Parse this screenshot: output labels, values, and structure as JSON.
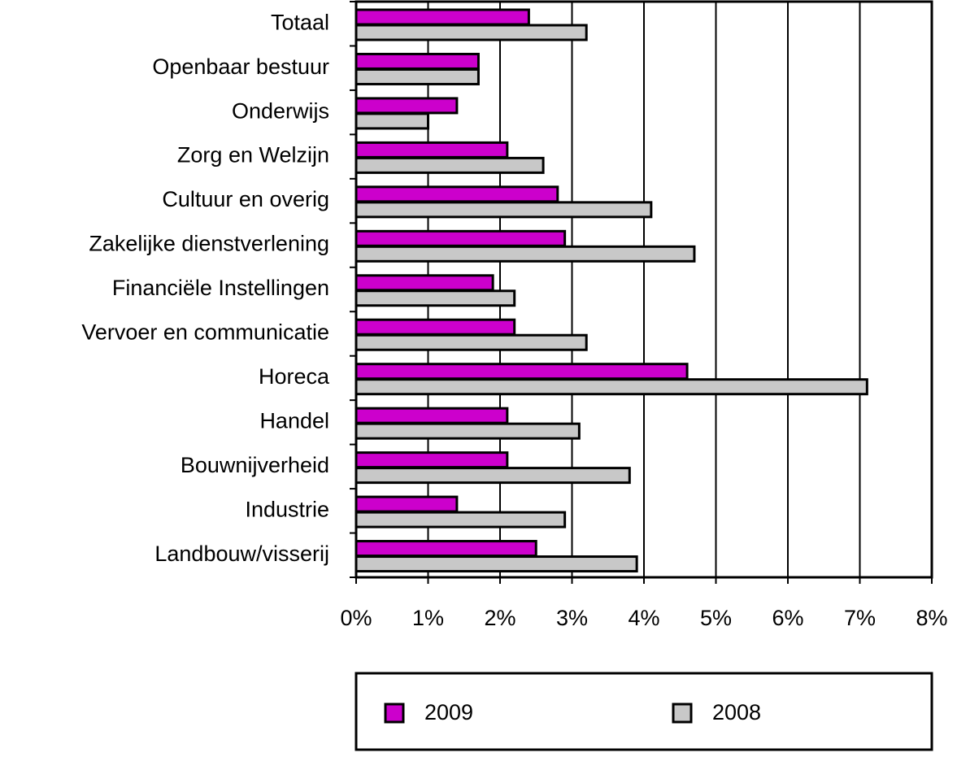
{
  "chart_data": {
    "type": "bar",
    "orientation": "horizontal",
    "categories": [
      "Totaal",
      "Openbaar bestuur",
      "Onderwijs",
      "Zorg en Welzijn",
      "Cultuur en overig",
      "Zakelijke dienstverlening",
      "Financiële Instellingen",
      "Vervoer en communicatie",
      "Horeca",
      "Handel",
      "Bouwnijverheid",
      "Industrie",
      "Landbouw/visserij"
    ],
    "series": [
      {
        "name": "2009",
        "color": "#cc00cc",
        "values": [
          2.4,
          1.7,
          1.4,
          2.1,
          2.8,
          2.9,
          1.9,
          2.2,
          4.6,
          2.1,
          2.1,
          1.4,
          2.5
        ]
      },
      {
        "name": "2008",
        "color": "#c8c8c8",
        "values": [
          3.2,
          1.7,
          1.0,
          2.6,
          4.1,
          4.7,
          2.2,
          3.2,
          7.1,
          3.1,
          3.8,
          2.9,
          3.9
        ]
      }
    ],
    "xlim": [
      0,
      8
    ],
    "xticks": [
      {
        "value": 0,
        "label": "0%"
      },
      {
        "value": 1,
        "label": "1%"
      },
      {
        "value": 2,
        "label": "2%"
      },
      {
        "value": 3,
        "label": "3%"
      },
      {
        "value": 4,
        "label": "4%"
      },
      {
        "value": 5,
        "label": "5%"
      },
      {
        "value": 6,
        "label": "6%"
      },
      {
        "value": 7,
        "label": "7%"
      },
      {
        "value": 8,
        "label": "8%"
      }
    ],
    "grid": true,
    "legend": "bottom"
  }
}
